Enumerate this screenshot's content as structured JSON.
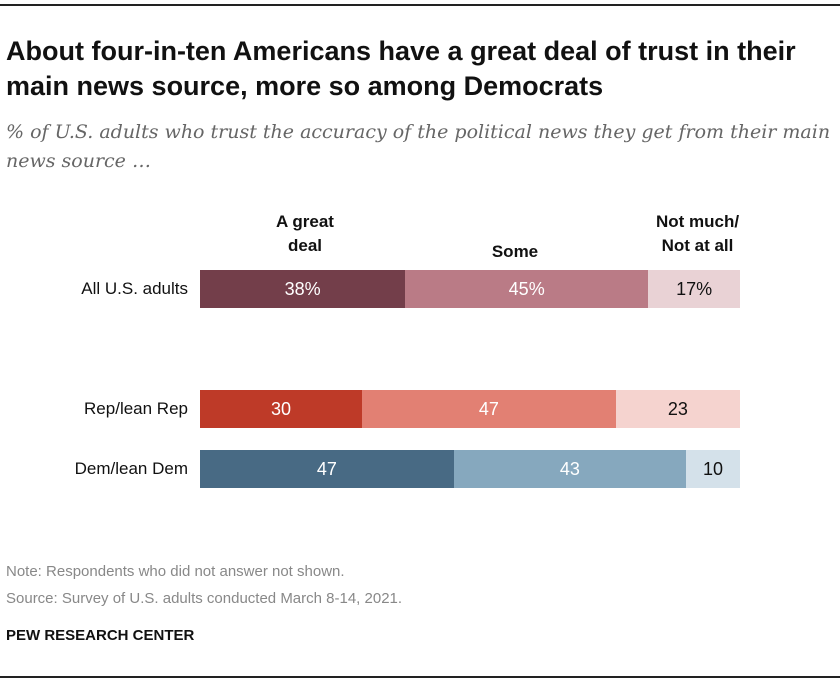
{
  "title": "About four-in-ten Americans have a great deal of trust in their main news source, more so among Democrats",
  "subtitle": "% of U.S. adults who trust the accuracy of the political news they get from their main news source …",
  "note": "Note: Respondents who did not answer not shown.",
  "source": "Source: Survey of U.S. adults conducted March 8-14, 2021.",
  "brand": "PEW RESEARCH CENTER",
  "chart_data": {
    "type": "bar",
    "orientation": "horizontal-stacked",
    "categories": [
      "All U.S. adults",
      "Rep/lean Rep",
      "Dem/lean Dem"
    ],
    "series": [
      {
        "name": "A great deal",
        "values": [
          38,
          30,
          47
        ]
      },
      {
        "name": "Some",
        "values": [
          45,
          47,
          43
        ]
      },
      {
        "name": "Not much/ Not at all",
        "values": [
          17,
          23,
          10
        ]
      }
    ],
    "value_labels": [
      [
        "38%",
        "45%",
        "17%"
      ],
      [
        "30",
        "47",
        "23"
      ],
      [
        "47",
        "43",
        "10"
      ]
    ],
    "colors": [
      [
        "#733e4a",
        "#ba7b86",
        "#e9d2d5"
      ],
      [
        "#be3a28",
        "#e28073",
        "#f5d3cf"
      ],
      [
        "#486a84",
        "#86a8be",
        "#d4e1ea"
      ]
    ],
    "text_colors": [
      "#ffffff",
      "#ffffff",
      "#111111"
    ],
    "xlim": [
      0,
      100
    ]
  }
}
